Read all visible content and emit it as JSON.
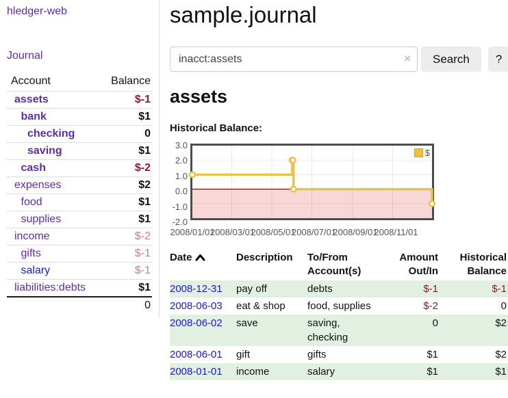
{
  "colors": {
    "accent": "#5f2da5",
    "link_blue": "#1717e0",
    "neg_strong": "#8c1a28",
    "neg_muted": "#c5828c",
    "row_green": "#e2f0e2",
    "gold": "#edc240",
    "pink": "#f9d7d7",
    "zero_line": "#900000",
    "axis_text": "#545454",
    "border_gray": "#dddddd",
    "plot_border": "#4c4c4c"
  },
  "sidebar": {
    "brand": "hledger-web",
    "journal_link": "Journal",
    "account_header": "Account",
    "balance_header": "Balance",
    "accounts": [
      {
        "name": "assets",
        "balance": "$-1",
        "indent": 0,
        "bold": true,
        "neg": "strong"
      },
      {
        "name": "bank",
        "balance": "$1",
        "indent": 1,
        "bold": true
      },
      {
        "name": "checking",
        "balance": "0",
        "indent": 2,
        "bold": true
      },
      {
        "name": "saving",
        "balance": "$1",
        "indent": 2,
        "bold": true
      },
      {
        "name": "cash",
        "balance": "$-2",
        "indent": 1,
        "bold": true,
        "neg": "strong"
      },
      {
        "name": "expenses",
        "balance": "$2",
        "indent": 0
      },
      {
        "name": "food",
        "balance": "$1",
        "indent": 1
      },
      {
        "name": "supplies",
        "balance": "$1",
        "indent": 1
      },
      {
        "name": "income",
        "balance": "$-2",
        "indent": 0,
        "neg": "muted"
      },
      {
        "name": "gifts",
        "balance": "$-1",
        "indent": 1,
        "neg": "muted"
      },
      {
        "name": "salary",
        "balance": "$-1",
        "indent": 1,
        "neg": "muted",
        "blue": true
      },
      {
        "name": "liabilities:debts",
        "balance": "$1",
        "indent": 0
      }
    ],
    "total_balance": "0"
  },
  "main": {
    "title": "sample.journal",
    "search": {
      "query": "inacct:assets",
      "clear_icon": "×",
      "search_button": "Search",
      "help_button": "?"
    },
    "account_heading": "assets",
    "chart_heading": "Historical Balance:"
  },
  "chart_data": {
    "type": "line",
    "step": true,
    "title": "Historical Balance:",
    "series": [
      {
        "name": "$",
        "color": "#edc240",
        "points": [
          [
            "2008-01-01",
            1
          ],
          [
            "2008-06-01",
            2
          ],
          [
            "2008-06-02",
            2
          ],
          [
            "2008-06-03",
            0
          ],
          [
            "2008-12-31",
            -1
          ]
        ]
      }
    ],
    "x_start": "2008-01-01",
    "x_end": "2008-12-31",
    "ylim": [
      -2,
      3
    ],
    "y_ticks": [
      "3.0",
      "2.0",
      "1.0",
      "0.0",
      "-1.0",
      "-2.0"
    ],
    "x_ticks": [
      "2008/01/01",
      "2008/03/01",
      "2008/05/01",
      "2008/07/01",
      "2008/09/01",
      "2008/11/01"
    ],
    "grid": true,
    "negative_region_shaded": true,
    "legend_position": "top-right",
    "legend_label": "$"
  },
  "register": {
    "headers": [
      "Date",
      "Description",
      "To/From Account(s)",
      "Amount Out/In",
      "Historical Balance"
    ],
    "rows": [
      {
        "date": "2008-12-31",
        "description": "pay off",
        "accounts": "debts",
        "amount": "$-1",
        "balance": "$-1"
      },
      {
        "date": "2008-06-03",
        "description": "eat & shop",
        "accounts": "food, supplies",
        "amount": "$-2",
        "balance": "0"
      },
      {
        "date": "2008-06-02",
        "description": "save",
        "accounts": "saving, checking",
        "amount": "0",
        "balance": "$2"
      },
      {
        "date": "2008-06-01",
        "description": "gift",
        "accounts": "gifts",
        "amount": "$1",
        "balance": "$2"
      },
      {
        "date": "2008-01-01",
        "description": "income",
        "accounts": "salary",
        "amount": "$1",
        "balance": "$1"
      }
    ]
  }
}
